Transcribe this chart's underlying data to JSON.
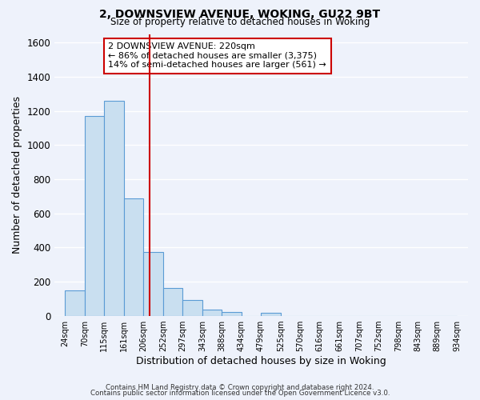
{
  "title": "2, DOWNSVIEW AVENUE, WOKING, GU22 9BT",
  "subtitle": "Size of property relative to detached houses in Woking",
  "xlabel": "Distribution of detached houses by size in Woking",
  "ylabel": "Number of detached properties",
  "bar_left_edges": [
    24,
    70,
    115,
    161,
    206,
    252,
    297,
    343,
    388,
    434,
    479,
    525,
    570,
    616,
    661,
    707,
    752,
    798,
    843,
    889
  ],
  "bar_heights": [
    148,
    1170,
    1260,
    685,
    375,
    160,
    90,
    37,
    22,
    0,
    15,
    0,
    0,
    0,
    0,
    0,
    0,
    0,
    0,
    0
  ],
  "bin_width": 46,
  "bar_facecolor": "#c9dff0",
  "bar_edgecolor": "#5b9bd5",
  "vline_x": 220,
  "vline_color": "#cc0000",
  "annotation_title": "2 DOWNSVIEW AVENUE: 220sqm",
  "annotation_line1": "← 86% of detached houses are smaller (3,375)",
  "annotation_line2": "14% of semi-detached houses are larger (561) →",
  "annotation_box_edgecolor": "#cc0000",
  "tick_labels": [
    "24sqm",
    "70sqm",
    "115sqm",
    "161sqm",
    "206sqm",
    "252sqm",
    "297sqm",
    "343sqm",
    "388sqm",
    "434sqm",
    "479sqm",
    "525sqm",
    "570sqm",
    "616sqm",
    "661sqm",
    "707sqm",
    "752sqm",
    "798sqm",
    "843sqm",
    "889sqm",
    "934sqm"
  ],
  "tick_positions": [
    24,
    70,
    115,
    161,
    206,
    252,
    297,
    343,
    388,
    434,
    479,
    525,
    570,
    616,
    661,
    707,
    752,
    798,
    843,
    889,
    934
  ],
  "ylim": [
    0,
    1650
  ],
  "xlim": [
    0,
    960
  ],
  "yticks": [
    0,
    200,
    400,
    600,
    800,
    1000,
    1200,
    1400,
    1600
  ],
  "background_color": "#eef2fb",
  "grid_color": "#ffffff",
  "footer_line1": "Contains HM Land Registry data © Crown copyright and database right 2024.",
  "footer_line2": "Contains public sector information licensed under the Open Government Licence v3.0."
}
